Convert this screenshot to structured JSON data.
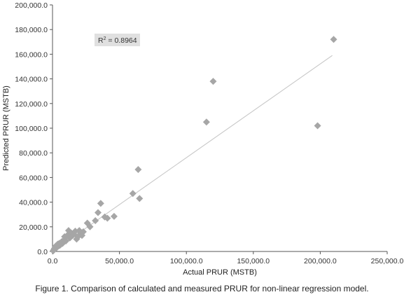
{
  "chart_data": {
    "type": "scatter",
    "title": "",
    "xlabel": "Actual PRUR (MSTB)",
    "ylabel": "Predicted PRUR (MSTB)",
    "xlim": [
      0,
      250000
    ],
    "ylim": [
      0,
      200000
    ],
    "x_ticks": [
      "0.0",
      "50,000.0",
      "100,000.0",
      "150,000.0",
      "200,000.0",
      "250,000.0"
    ],
    "y_ticks": [
      "0.0",
      "20,000.0",
      "40,000.0",
      "60,000.0",
      "80,000.0",
      "100,000.0",
      "120,000.0",
      "140,000.0",
      "160,000.0",
      "180,000.0",
      "200,000.0"
    ],
    "x_tick_values": [
      0,
      50000,
      100000,
      150000,
      200000,
      250000
    ],
    "y_tick_values": [
      0,
      20000,
      40000,
      60000,
      80000,
      100000,
      120000,
      140000,
      160000,
      180000,
      200000
    ],
    "grid": false,
    "annotation": {
      "r2_prefix": "R",
      "r2_sup": "2",
      "r2_suffix": " = 0.8964"
    },
    "trendline": {
      "x": [
        0,
        209000
      ],
      "y": [
        0,
        159000
      ]
    },
    "marker_color": "#a6a6a6",
    "trendline_color": "#c4c4c4",
    "points": [
      [
        500,
        500
      ],
      [
        1000,
        1500
      ],
      [
        1500,
        2500
      ],
      [
        2000,
        3500
      ],
      [
        2500,
        4500
      ],
      [
        3000,
        3000
      ],
      [
        3500,
        5500
      ],
      [
        4000,
        6000
      ],
      [
        4500,
        4500
      ],
      [
        5000,
        6500
      ],
      [
        5500,
        5000
      ],
      [
        6000,
        7000
      ],
      [
        6500,
        6000
      ],
      [
        7000,
        8000
      ],
      [
        7500,
        6500
      ],
      [
        8000,
        7500
      ],
      [
        8500,
        9000
      ],
      [
        9000,
        12000
      ],
      [
        10000,
        8500
      ],
      [
        11000,
        13000
      ],
      [
        12000,
        17000
      ],
      [
        13000,
        11000
      ],
      [
        14000,
        15000
      ],
      [
        15000,
        13000
      ],
      [
        16000,
        14000
      ],
      [
        17000,
        16500
      ],
      [
        18000,
        10000
      ],
      [
        19000,
        12000
      ],
      [
        20000,
        17000
      ],
      [
        21000,
        15000
      ],
      [
        22000,
        13000
      ],
      [
        23000,
        16000
      ],
      [
        26000,
        23000
      ],
      [
        28000,
        20000
      ],
      [
        32000,
        25000
      ],
      [
        34000,
        31500
      ],
      [
        36000,
        39000
      ],
      [
        39000,
        28000
      ],
      [
        41000,
        27000
      ],
      [
        46000,
        28500
      ],
      [
        60000,
        47000
      ],
      [
        64000,
        66500
      ],
      [
        65000,
        43000
      ],
      [
        115000,
        105000
      ],
      [
        120000,
        138000
      ],
      [
        198000,
        102000
      ],
      [
        210000,
        172000
      ]
    ]
  },
  "caption": "Figure 1. Comparison of calculated and measured PRUR for non-linear regression model."
}
